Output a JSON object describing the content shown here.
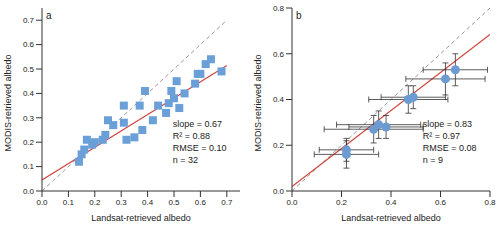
{
  "chart_data": [
    {
      "type": "scatter",
      "title": "a",
      "x_label": "Landsat-retrieved albedo",
      "y_label": "MODIS-retrieved albedo",
      "x": [
        0.14,
        0.15,
        0.16,
        0.17,
        0.19,
        0.2,
        0.23,
        0.24,
        0.25,
        0.27,
        0.31,
        0.31,
        0.32,
        0.35,
        0.37,
        0.38,
        0.39,
        0.42,
        0.44,
        0.47,
        0.48,
        0.49,
        0.5,
        0.51,
        0.52,
        0.54,
        0.58,
        0.59,
        0.6,
        0.62,
        0.64,
        0.68
      ],
      "y": [
        0.12,
        0.15,
        0.17,
        0.21,
        0.19,
        0.2,
        0.21,
        0.23,
        0.29,
        0.27,
        0.35,
        0.28,
        0.21,
        0.22,
        0.35,
        0.25,
        0.41,
        0.29,
        0.35,
        0.32,
        0.36,
        0.41,
        0.38,
        0.45,
        0.34,
        0.4,
        0.44,
        0.48,
        0.48,
        0.52,
        0.54,
        0.49
      ],
      "color": "#6a9fd8",
      "marker": "square",
      "fit_line": [
        [
          0,
          0.045
        ],
        [
          0.7,
          0.514
        ]
      ],
      "one_to_one_line": [
        [
          0,
          0
        ],
        [
          0.7,
          0.7
        ]
      ],
      "annotations": [
        "slope = 0.67",
        "R² = 0.88",
        "RMSE = 0.10",
        "n = 32"
      ],
      "xlim": [
        0,
        0.75
      ],
      "ylim": [
        0,
        0.75
      ],
      "xticks": [
        {
          "value": 0,
          "label": "0.0"
        },
        0.1,
        0.2,
        0.3,
        0.4,
        0.5,
        0.6,
        0.7
      ],
      "yticks": [
        {
          "value": 0,
          "label": "0.0"
        },
        0.1,
        0.2,
        0.3,
        0.4,
        0.5,
        0.6,
        0.7
      ]
    },
    {
      "type": "scatter",
      "title": "b",
      "x_label": "Landsat-retrieved albedo",
      "y_label": "MODIS-retrieved albedo",
      "x": [
        0.22,
        0.22,
        0.33,
        0.35,
        0.38,
        0.47,
        0.49,
        0.62,
        0.66
      ],
      "y": [
        0.16,
        0.18,
        0.27,
        0.29,
        0.28,
        0.4,
        0.41,
        0.49,
        0.53
      ],
      "x_error": [
        0.13,
        0.11,
        0.2,
        0.17,
        0.15,
        0.16,
        0.13,
        0.16,
        0.13
      ],
      "y_error": [
        0.06,
        0.05,
        0.06,
        0.06,
        0.05,
        0.06,
        0.05,
        0.07,
        0.07
      ],
      "color": "#6c9bd2",
      "marker": "circle",
      "fit_line": [
        [
          0,
          0.02
        ],
        [
          0.8,
          0.684
        ]
      ],
      "one_to_one_line": [
        [
          0,
          0
        ],
        [
          0.8,
          0.8
        ]
      ],
      "annotations": [
        "slope = 0.83",
        "R² = 0.97",
        "RMSE = 0.08",
        "n = 9"
      ],
      "xlim": [
        0,
        0.8
      ],
      "ylim": [
        0,
        0.8
      ],
      "xticks": [
        {
          "value": 0,
          "label": "0.0"
        },
        0.2,
        0.4,
        0.6,
        0.8
      ],
      "yticks": [
        {
          "value": 0,
          "label": "0.0"
        },
        0.2,
        0.4,
        0.6,
        0.8
      ]
    }
  ]
}
